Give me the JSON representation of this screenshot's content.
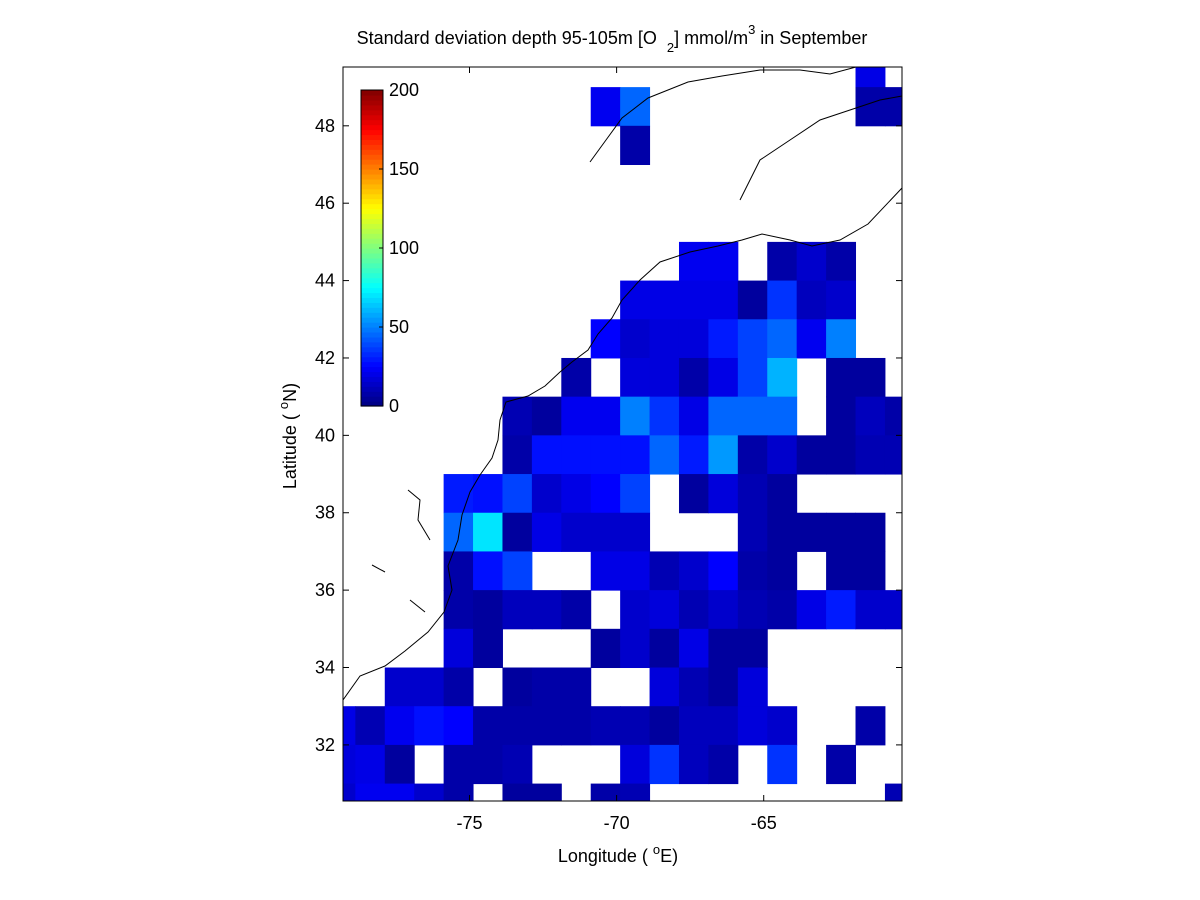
{
  "chart_data": {
    "type": "heatmap",
    "title_parts": [
      "Standard deviation depth 95-105m [O",
      "2",
      "] mmol/m",
      "3",
      " in September"
    ],
    "xlabel_parts": [
      "Longitude ( ",
      "o",
      "E)"
    ],
    "ylabel_parts": [
      "Latitude ( ",
      "o",
      "N)"
    ],
    "x": [
      -79.38,
      -78.38,
      -77.38,
      -76.38,
      -75.38,
      -74.38,
      -73.38,
      -72.38,
      -71.38,
      -70.38,
      -69.38,
      -68.38,
      -67.38,
      -66.38,
      -65.38,
      -64.38,
      -63.38,
      -62.38,
      -61.38,
      -60.38
    ],
    "y": [
      49.5,
      48.5,
      47.5,
      46.5,
      45.5,
      44.5,
      43.5,
      42.5,
      41.5,
      40.5,
      39.5,
      38.5,
      37.5,
      36.5,
      35.5,
      34.5,
      33.5,
      32.5,
      31.5,
      30.5
    ],
    "values": [
      [
        null,
        null,
        null,
        null,
        null,
        null,
        null,
        null,
        null,
        null,
        null,
        null,
        null,
        null,
        null,
        null,
        null,
        null,
        20,
        null
      ],
      [
        null,
        null,
        null,
        null,
        null,
        null,
        null,
        null,
        null,
        22,
        45,
        null,
        null,
        null,
        null,
        null,
        null,
        null,
        8,
        8
      ],
      [
        null,
        null,
        null,
        null,
        null,
        null,
        null,
        null,
        null,
        null,
        8,
        null,
        null,
        null,
        null,
        null,
        null,
        null,
        null,
        null
      ],
      [
        null,
        null,
        null,
        null,
        null,
        null,
        null,
        null,
        null,
        null,
        null,
        null,
        null,
        null,
        null,
        null,
        null,
        null,
        null,
        null
      ],
      [
        null,
        null,
        null,
        null,
        null,
        null,
        null,
        null,
        null,
        null,
        null,
        null,
        null,
        null,
        null,
        null,
        null,
        null,
        null,
        null
      ],
      [
        null,
        null,
        null,
        null,
        null,
        null,
        null,
        null,
        null,
        null,
        null,
        null,
        22,
        22,
        null,
        8,
        15,
        8,
        null,
        null
      ],
      [
        null,
        null,
        null,
        null,
        null,
        null,
        null,
        null,
        null,
        null,
        20,
        20,
        20,
        20,
        6,
        35,
        12,
        15,
        null,
        null
      ],
      [
        null,
        null,
        null,
        null,
        null,
        null,
        null,
        null,
        null,
        25,
        15,
        18,
        18,
        30,
        38,
        45,
        22,
        50,
        null,
        null
      ],
      [
        null,
        null,
        null,
        null,
        null,
        null,
        null,
        null,
        8,
        null,
        18,
        18,
        8,
        20,
        38,
        60,
        null,
        6,
        6,
        null
      ],
      [
        null,
        null,
        null,
        null,
        null,
        null,
        10,
        6,
        22,
        22,
        50,
        35,
        20,
        45,
        45,
        45,
        null,
        6,
        12,
        8
      ],
      [
        null,
        null,
        null,
        null,
        null,
        null,
        8,
        28,
        28,
        28,
        28,
        45,
        30,
        55,
        8,
        15,
        6,
        6,
        10,
        10
      ],
      [
        null,
        null,
        null,
        null,
        30,
        28,
        38,
        15,
        20,
        25,
        38,
        null,
        6,
        18,
        10,
        6,
        null,
        null,
        null,
        null
      ],
      [
        null,
        null,
        null,
        null,
        45,
        70,
        6,
        20,
        15,
        15,
        15,
        null,
        null,
        null,
        10,
        6,
        6,
        6,
        6,
        null
      ],
      [
        null,
        null,
        null,
        null,
        8,
        28,
        38,
        null,
        null,
        20,
        20,
        10,
        15,
        25,
        8,
        6,
        null,
        6,
        6,
        null
      ],
      [
        null,
        null,
        null,
        null,
        8,
        6,
        12,
        12,
        8,
        null,
        15,
        18,
        10,
        15,
        10,
        8,
        20,
        30,
        15,
        15
      ],
      [
        null,
        null,
        null,
        null,
        18,
        6,
        null,
        null,
        null,
        6,
        15,
        6,
        20,
        6,
        6,
        null,
        null,
        null,
        null,
        null
      ],
      [
        null,
        null,
        15,
        15,
        8,
        null,
        6,
        8,
        8,
        null,
        null,
        18,
        10,
        6,
        18,
        null,
        null,
        null,
        null,
        null
      ],
      [
        20,
        10,
        22,
        28,
        25,
        8,
        8,
        8,
        8,
        10,
        10,
        6,
        12,
        12,
        18,
        15,
        null,
        null,
        8,
        null
      ],
      [
        18,
        20,
        6,
        null,
        8,
        8,
        10,
        null,
        null,
        null,
        18,
        35,
        12,
        8,
        null,
        35,
        null,
        8,
        null,
        null
      ],
      [
        15,
        22,
        22,
        15,
        8,
        null,
        6,
        6,
        null,
        8,
        10,
        null,
        null,
        null,
        null,
        null,
        null,
        null,
        null,
        10
      ]
    ],
    "xlim": [
      -79.3,
      -60.3
    ],
    "ylim": [
      30.55,
      49.52
    ],
    "xticks": [
      -75,
      -70,
      -65
    ],
    "yticks": [
      32,
      34,
      36,
      38,
      40,
      42,
      44,
      46,
      48
    ],
    "colormap": "jet",
    "clim": [
      0,
      200
    ],
    "cticks": [
      0,
      50,
      100,
      150,
      200
    ]
  }
}
